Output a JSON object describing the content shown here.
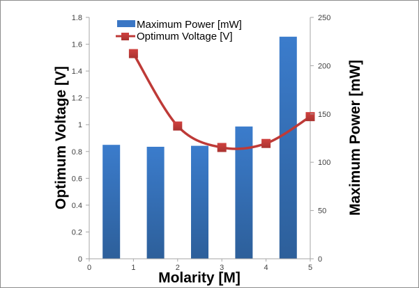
{
  "chart_data": {
    "type": "bar+line",
    "title": "",
    "xlabel": "Molarity [M]",
    "ylabel_left": "Optimum Voltage [V]",
    "ylabel_right": "Maximum Power [mW]",
    "xlim": [
      0,
      5
    ],
    "ylim_left": [
      0,
      1.8
    ],
    "ylim_right": [
      0,
      250
    ],
    "x_ticks": [
      "0",
      "1",
      "2",
      "3",
      "4",
      "5"
    ],
    "y_left_ticks": [
      "0",
      "0.2",
      "0.4",
      "0.6",
      "0.8",
      "1",
      "1.2",
      "1.4",
      "1.6",
      "1.8"
    ],
    "y_right_ticks": [
      "0",
      "50",
      "100",
      "150",
      "200",
      "250"
    ],
    "grid": false,
    "legend_position": "top-center",
    "series": [
      {
        "name": "Maximum Power [mW]",
        "type": "bar",
        "axis": "right",
        "color": "#3a76c4",
        "x": [
          0.5,
          1.5,
          2.5,
          3.5,
          4.5
        ],
        "values": [
          118,
          116,
          117,
          137,
          230
        ]
      },
      {
        "name": "Optimum Voltage [V]",
        "type": "line",
        "axis": "left",
        "smooth": true,
        "marker": "square",
        "color": "#be3a37",
        "x": [
          1,
          2,
          3,
          4,
          5
        ],
        "values": [
          1.53,
          0.99,
          0.83,
          0.86,
          1.06
        ]
      }
    ]
  }
}
